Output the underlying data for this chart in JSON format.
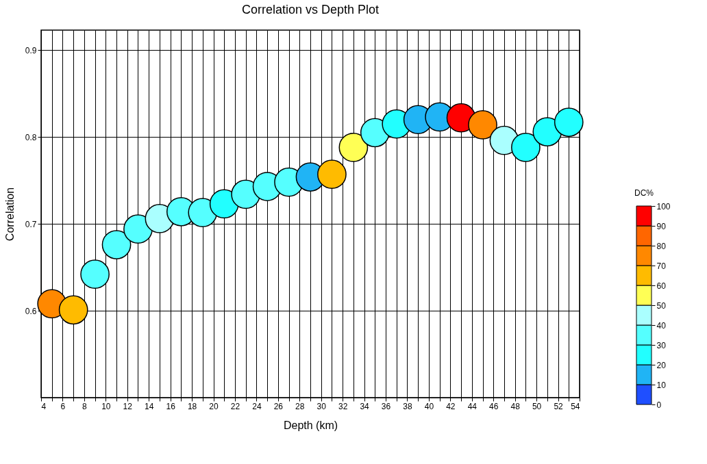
{
  "chart_data": {
    "type": "scatter",
    "title": "Correlation vs Depth Plot",
    "xlabel": "Depth (km)",
    "ylabel": "Correlation",
    "clabel": "DC%",
    "x": [
      5,
      7,
      9,
      11,
      13,
      15,
      17,
      19,
      21,
      23,
      25,
      27,
      29,
      31,
      33,
      35,
      37,
      39,
      41,
      43,
      45,
      47,
      49,
      51,
      53
    ],
    "values": [
      0.608,
      0.601,
      0.642,
      0.676,
      0.694,
      0.706,
      0.714,
      0.713,
      0.723,
      0.734,
      0.743,
      0.748,
      0.754,
      0.757,
      0.788,
      0.805,
      0.815,
      0.82,
      0.823,
      0.822,
      0.814,
      0.796,
      0.788,
      0.806,
      0.817
    ],
    "cvalues": [
      75,
      65,
      35,
      35,
      35,
      45,
      35,
      35,
      25,
      35,
      35,
      35,
      15,
      65,
      55,
      35,
      25,
      15,
      15,
      95,
      75,
      45,
      25,
      25,
      25
    ],
    "clim": [
      0,
      100
    ],
    "cticks": [
      0,
      10,
      20,
      30,
      40,
      50,
      60,
      70,
      80,
      90,
      100
    ],
    "xlim": [
      4,
      54
    ],
    "xticks": [
      4,
      {
        "value": 5,
        "label": null
      },
      6,
      {
        "value": 7,
        "label": null
      },
      8,
      {
        "value": 9,
        "label": null
      },
      10,
      {
        "value": 11,
        "label": null
      },
      12,
      {
        "value": 13,
        "label": null
      },
      14,
      {
        "value": 15,
        "label": null
      },
      16,
      {
        "value": 17,
        "label": null
      },
      18,
      {
        "value": 19,
        "label": null
      },
      20,
      {
        "value": 21,
        "label": null
      },
      22,
      {
        "value": 23,
        "label": null
      },
      24,
      {
        "value": 25,
        "label": null
      },
      26,
      {
        "value": 27,
        "label": null
      },
      28,
      {
        "value": 29,
        "label": null
      },
      30,
      {
        "value": 31,
        "label": null
      },
      32,
      {
        "value": 33,
        "label": null
      },
      34,
      {
        "value": 35,
        "label": null
      },
      36,
      {
        "value": 37,
        "label": null
      },
      38,
      {
        "value": 39,
        "label": null
      },
      40,
      {
        "value": 41,
        "label": null
      },
      42,
      {
        "value": 43,
        "label": null
      },
      44,
      {
        "value": 45,
        "label": null
      },
      46,
      {
        "value": 47,
        "label": null
      },
      48,
      {
        "value": 49,
        "label": null
      },
      50,
      {
        "value": 51,
        "label": null
      },
      52,
      {
        "value": 53,
        "label": null
      },
      54
    ],
    "ylim": [
      0.5,
      0.923
    ],
    "yticks": [
      0.6,
      0.7,
      0.8,
      0.9
    ],
    "grid": true
  }
}
